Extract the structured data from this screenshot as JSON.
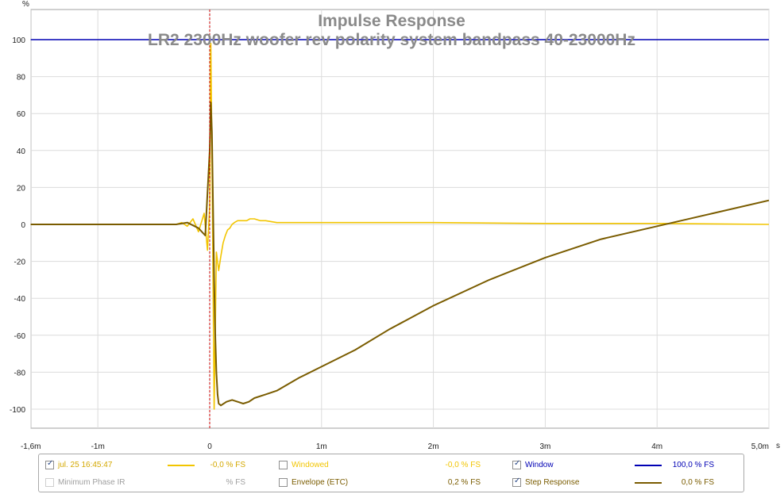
{
  "chart_data": {
    "type": "line",
    "title": "Impulse Response",
    "subtitle": "LR2 2300Hz woofer rev polarity system bandpass 40-23000Hz",
    "ylabel": "%",
    "xunit": "s",
    "xlim": [
      -0.0016,
      0.005
    ],
    "ylim": [
      -115,
      110
    ],
    "grid": true,
    "x_ticks": [
      -0.0016,
      -0.001,
      0,
      0.001,
      0.002,
      0.003,
      0.004,
      0.005
    ],
    "x_tick_labels": [
      "-1,6m",
      "-1m",
      "0",
      "1m",
      "2m",
      "3m",
      "4m",
      "5,0m"
    ],
    "y_ticks": [
      100,
      80,
      60,
      40,
      20,
      0,
      -20,
      -40,
      -60,
      -80,
      -100
    ],
    "y_tick_labels": [
      "100",
      "80",
      "60",
      "40",
      "20",
      "0",
      "-20",
      "-40",
      "-60",
      "-80",
      "-100"
    ],
    "marker_x": 0,
    "series": [
      {
        "name": "jul. 25 16:45:47",
        "color": "#f2c500",
        "x": [
          -0.0016,
          -0.0005,
          -0.0003,
          -0.00025,
          -0.0002,
          -0.00015,
          -0.0001,
          -5e-05,
          -2e-05,
          0,
          1e-05,
          2e-05,
          4e-05,
          6e-05,
          8e-05,
          0.0001,
          0.00012,
          0.00014,
          0.00016,
          0.00018,
          0.0002,
          0.00022,
          0.00025,
          0.00028,
          0.0003,
          0.00033,
          0.00036,
          0.0004,
          0.00045,
          0.0005,
          0.0006,
          0.0008,
          0.001,
          0.002,
          0.003,
          0.004,
          0.005
        ],
        "y": [
          0,
          0,
          0,
          1,
          -1,
          3,
          -4,
          6,
          -14,
          10,
          98,
          40,
          -100,
          -15,
          -25,
          -17,
          -10,
          -6,
          -3,
          -2,
          0,
          1,
          2,
          2,
          2,
          2,
          3,
          3,
          2,
          2,
          1,
          1,
          1,
          1,
          0.5,
          0.5,
          0
        ]
      },
      {
        "name": "Step Response",
        "color": "#7a5c00",
        "x": [
          -0.0016,
          -0.0003,
          -0.0002,
          -0.0001,
          -4e-05,
          0,
          1e-05,
          2e-05,
          3e-05,
          4e-05,
          5e-05,
          6e-05,
          7e-05,
          8e-05,
          0.0001,
          0.00015,
          0.0002,
          0.00025,
          0.0003,
          0.00035,
          0.0004,
          0.0005,
          0.0006,
          0.0008,
          0.001,
          0.0013,
          0.0016,
          0.002,
          0.0025,
          0.003,
          0.0035,
          0.004,
          0.0045,
          0.005
        ],
        "y": [
          0,
          0,
          1,
          -2,
          -6,
          40,
          66,
          50,
          10,
          -30,
          -60,
          -80,
          -92,
          -97,
          -98,
          -96,
          -95,
          -96,
          -97,
          -96,
          -94,
          -92,
          -90,
          -83,
          -77,
          -68,
          -57,
          -44,
          -30,
          -18,
          -8,
          -1,
          6,
          13
        ]
      },
      {
        "name": "Window",
        "color": "#0000b4",
        "x": [
          -0.0016,
          0.005
        ],
        "y": [
          100,
          100
        ]
      }
    ]
  },
  "legend": {
    "rows": [
      {
        "label": "jul. 25 16:45:47",
        "value": "-0,0 % FS",
        "checked": true,
        "color": "#f2c500"
      },
      {
        "label": "Minimum Phase IR",
        "value": "% FS",
        "checked": false,
        "color": ""
      },
      {
        "label": "Windowed",
        "value": "-0,0 % FS",
        "checked": false,
        "color": ""
      },
      {
        "label": "Envelope (ETC)",
        "value": "0,2 % FS",
        "checked": false,
        "color": ""
      },
      {
        "label": "Window",
        "value": "100,0 % FS",
        "checked": true,
        "color": "#0000b4"
      },
      {
        "label": "Step Response",
        "value": "0,0 % FS",
        "checked": true,
        "color": "#7a5c00"
      }
    ]
  }
}
